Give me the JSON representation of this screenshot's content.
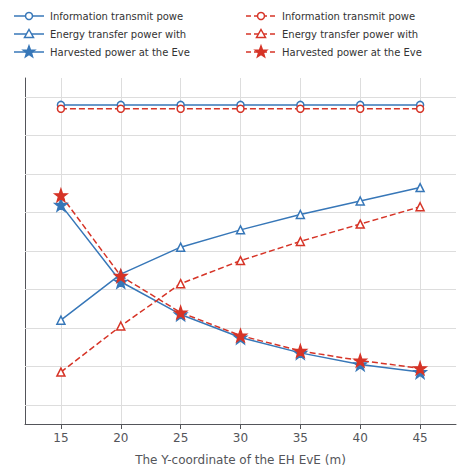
{
  "chart_data": {
    "type": "line",
    "xlabel": "The Y-coordinate of the EH EvE (m)",
    "x": [
      15,
      20,
      25,
      30,
      35,
      40,
      45
    ],
    "xlim": [
      12,
      48
    ],
    "xticks": [
      15,
      20,
      25,
      30,
      35,
      40,
      45
    ],
    "ylim": [
      0.15,
      1.05
    ],
    "yticks": [
      0.2,
      0.3,
      0.4,
      0.5,
      0.6,
      0.7,
      0.8,
      0.9,
      1.0
    ],
    "tick_labels": "x",
    "grid": true,
    "legend": "top",
    "series": [
      {
        "name": "Information transmit powe",
        "color": "#3777b8",
        "marker": "circle",
        "line_style": "solid",
        "values": [
          0.98,
          0.98,
          0.98,
          0.98,
          0.98,
          0.98,
          0.98
        ]
      },
      {
        "name": "Energy transfer power with",
        "color": "#3777b8",
        "marker": "triangle",
        "line_style": "solid",
        "values": [
          0.42,
          0.54,
          0.61,
          0.655,
          0.695,
          0.73,
          0.765
        ]
      },
      {
        "name": "Harvested power at the Eve",
        "color": "#3777b8",
        "marker": "star",
        "line_style": "solid",
        "values": [
          0.72,
          0.52,
          0.435,
          0.375,
          0.335,
          0.305,
          0.285
        ]
      },
      {
        "name": "Information transmit powe",
        "color": "#d63427",
        "marker": "circle",
        "line_style": "dashed",
        "values": [
          0.97,
          0.97,
          0.97,
          0.97,
          0.97,
          0.97,
          0.97
        ]
      },
      {
        "name": "Energy transfer power with",
        "color": "#d63427",
        "marker": "triangle",
        "line_style": "dashed",
        "values": [
          0.285,
          0.405,
          0.515,
          0.575,
          0.625,
          0.67,
          0.715
        ]
      },
      {
        "name": "Harvested power at the Eve",
        "color": "#d63427",
        "marker": "star",
        "line_style": "dashed",
        "values": [
          0.745,
          0.535,
          0.44,
          0.38,
          0.34,
          0.315,
          0.295
        ]
      }
    ]
  }
}
